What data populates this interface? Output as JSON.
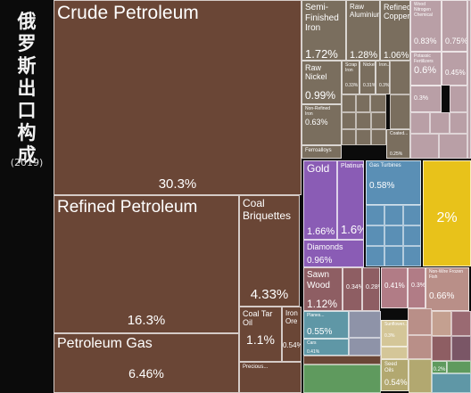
{
  "title": "俄罗斯出口构成",
  "year": "(2019)",
  "chart_data": {
    "type": "treemap",
    "unit": "% of exports",
    "items": [
      {
        "name": "Crude Petroleum",
        "value": 30.3,
        "pct": "30.3%",
        "color": "#6a4636",
        "group": "mineral"
      },
      {
        "name": "Refined Petroleum",
        "value": 16.3,
        "pct": "16.3%",
        "color": "#6a4636",
        "group": "mineral"
      },
      {
        "name": "Petroleum Gas",
        "value": 6.46,
        "pct": "6.46%",
        "color": "#6a4636",
        "group": "mineral"
      },
      {
        "name": "Coal Briquettes",
        "value": 4.33,
        "pct": "4.33%",
        "color": "#6a4636",
        "group": "mineral"
      },
      {
        "name": "Coal Tar Oil",
        "value": 1.1,
        "pct": "1.1%",
        "color": "#6a4636",
        "group": "mineral"
      },
      {
        "name": "Iron Ore",
        "value": 0.54,
        "pct": "0.54%",
        "color": "#6a4636",
        "group": "mineral"
      },
      {
        "name": "Precious...",
        "value": null,
        "pct": "",
        "color": "#6a4636",
        "group": "mineral"
      },
      {
        "name": "Semi-Finished Iron",
        "value": 1.72,
        "pct": "1.72%",
        "color": "#7a6e5e",
        "group": "metals"
      },
      {
        "name": "Raw Aluminium",
        "value": 1.28,
        "pct": "1.28%",
        "color": "#7a6e5e",
        "group": "metals"
      },
      {
        "name": "Refined Copper",
        "value": 1.06,
        "pct": "1.06%",
        "color": "#7a6e5e",
        "group": "metals"
      },
      {
        "name": "Raw Nickel",
        "value": 0.99,
        "pct": "0.99%",
        "color": "#7a6e5e",
        "group": "metals"
      },
      {
        "name": "Scrap Iron",
        "value": 0.33,
        "pct": "0.33%",
        "color": "#7a6e5e",
        "group": "metals"
      },
      {
        "name": "Nickel...",
        "value": 0.31,
        "pct": "0.31%",
        "color": "#7a6e5e",
        "group": "metals"
      },
      {
        "name": "Iron...",
        "value": 0.3,
        "pct": "0.3%",
        "color": "#7a6e5e",
        "group": "metals"
      },
      {
        "name": "Non-Refined Iron",
        "value": 0.63,
        "pct": "0.63%",
        "color": "#7a6e5e",
        "group": "metals"
      },
      {
        "name": "Ferroalloys",
        "value": null,
        "pct": "",
        "color": "#7a6e5e",
        "group": "metals"
      },
      {
        "name": "Coated...",
        "value": 0.25,
        "pct": "0.25%",
        "color": "#7a6e5e",
        "group": "metals"
      },
      {
        "name": "Wood Nitrogen Chemical",
        "value": 0.83,
        "pct": "0.83%",
        "color": "#b99fa6",
        "group": "chemicals"
      },
      {
        "name": "Potassic Fertilizers",
        "value": 0.6,
        "pct": "0.6%",
        "color": "#b99fa6",
        "group": "chemicals"
      },
      {
        "name": "",
        "value": 0.75,
        "pct": "0.75%",
        "color": "#b99fa6",
        "group": "chemicals"
      },
      {
        "name": "",
        "value": 0.45,
        "pct": "0.45%",
        "color": "#b99fa6",
        "group": "chemicals"
      },
      {
        "name": "",
        "value": 0.3,
        "pct": "0.3%",
        "color": "#b99fa6",
        "group": "chemicals"
      },
      {
        "name": "Gold",
        "value": 1.66,
        "pct": "1.66%",
        "color": "#8a5cb5",
        "group": "precious"
      },
      {
        "name": "Platinum",
        "value": 1.6,
        "pct": "1.6%",
        "color": "#8a5cb5",
        "group": "precious"
      },
      {
        "name": "Diamonds",
        "value": 0.96,
        "pct": "0.96%",
        "color": "#8a5cb5",
        "group": "precious"
      },
      {
        "name": "Gas Turbines",
        "value": 0.58,
        "pct": "0.58%",
        "color": "#5a8fb5",
        "group": "machinery"
      },
      {
        "name": "",
        "value": 2.0,
        "pct": "2%",
        "color": "#e8c21a",
        "group": "arms"
      },
      {
        "name": "Sawn Wood",
        "value": 1.12,
        "pct": "1.12%",
        "color": "#8e5e63",
        "group": "wood"
      },
      {
        "name": "",
        "value": 0.34,
        "pct": "0.34%",
        "color": "#8e5e63",
        "group": "wood"
      },
      {
        "name": "",
        "value": 0.28,
        "pct": "0.28%",
        "color": "#8e5e63",
        "group": "wood"
      },
      {
        "name": "",
        "value": 0.41,
        "pct": "0.41%",
        "color": "#b17c86",
        "group": "paper"
      },
      {
        "name": "",
        "value": 0.3,
        "pct": "0.3%",
        "color": "#b17c86",
        "group": "paper"
      },
      {
        "name": "Non-Wire Frozen Fish",
        "value": 0.66,
        "pct": "0.66%",
        "color": "#b98f88",
        "group": "animal"
      },
      {
        "name": "Planes...",
        "value": 0.55,
        "pct": "0.55%",
        "color": "#5f97a6",
        "group": "transport"
      },
      {
        "name": "Cars",
        "value": 0.41,
        "pct": "0.41%",
        "color": "#5f97a6",
        "group": "transport"
      },
      {
        "name": "Sunflower...",
        "value": 0.3,
        "pct": "0.3%",
        "color": "#d4c698",
        "group": "vegetable"
      },
      {
        "name": "Seed Oils",
        "value": 0.54,
        "pct": "0.54%",
        "color": "#b2a870",
        "group": "vegetable"
      },
      {
        "name": "",
        "value": 0.2,
        "pct": "0.2%",
        "color": "#5f9a5e",
        "group": "vegetable"
      }
    ]
  }
}
